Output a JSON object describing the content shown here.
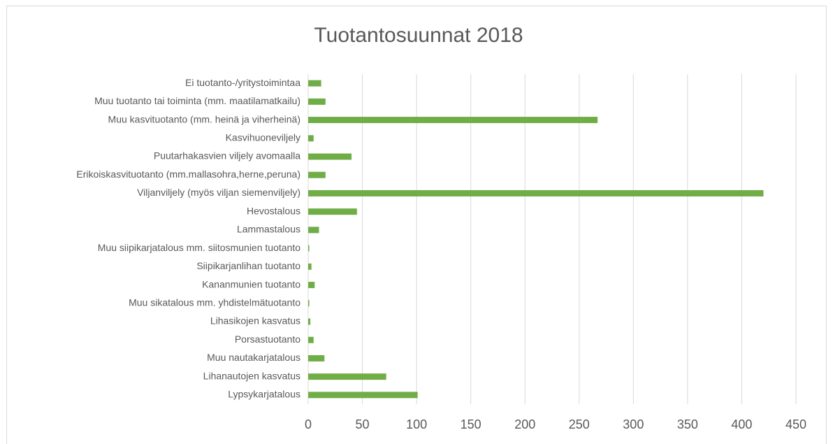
{
  "chart_data": {
    "type": "bar",
    "orientation": "horizontal",
    "title": "Tuotantosuunnat 2018",
    "categories": [
      "Ei tuotanto-/yritystoimintaa",
      "Muu tuotanto tai toiminta (mm. maatilamatkailu)",
      "Muu kasvituotanto (mm. heinä ja viherheinä)",
      "Kasvihuoneviljely",
      "Puutarhakasvien viljely avomaalla",
      "Erikoiskasvituotanto (mm.mallasohra,herne,peruna)",
      "Viljanviljely (myös viljan siemenviljely)",
      "Hevostalous",
      "Lammastalous",
      "Muu siipikarjatalous  mm. siitosmunien tuotanto",
      "Siipikarjanlihan tuotanto",
      "Kananmunien tuotanto",
      "Muu sikatalous mm. yhdistelmätuotanto",
      "Lihasikojen kasvatus",
      "Porsastuotanto",
      "Muu nautakarjatalous",
      "Lihanautojen kasvatus",
      "Lypsykarjatalous"
    ],
    "values": [
      12,
      16,
      267,
      5,
      40,
      16,
      420,
      45,
      10,
      1,
      3,
      6,
      1,
      2,
      5,
      15,
      72,
      101
    ],
    "color": "#70ad47",
    "xlim": [
      0,
      450
    ],
    "xticks": [
      0,
      50,
      100,
      150,
      200,
      250,
      300,
      350,
      400,
      450
    ],
    "grid": true
  }
}
